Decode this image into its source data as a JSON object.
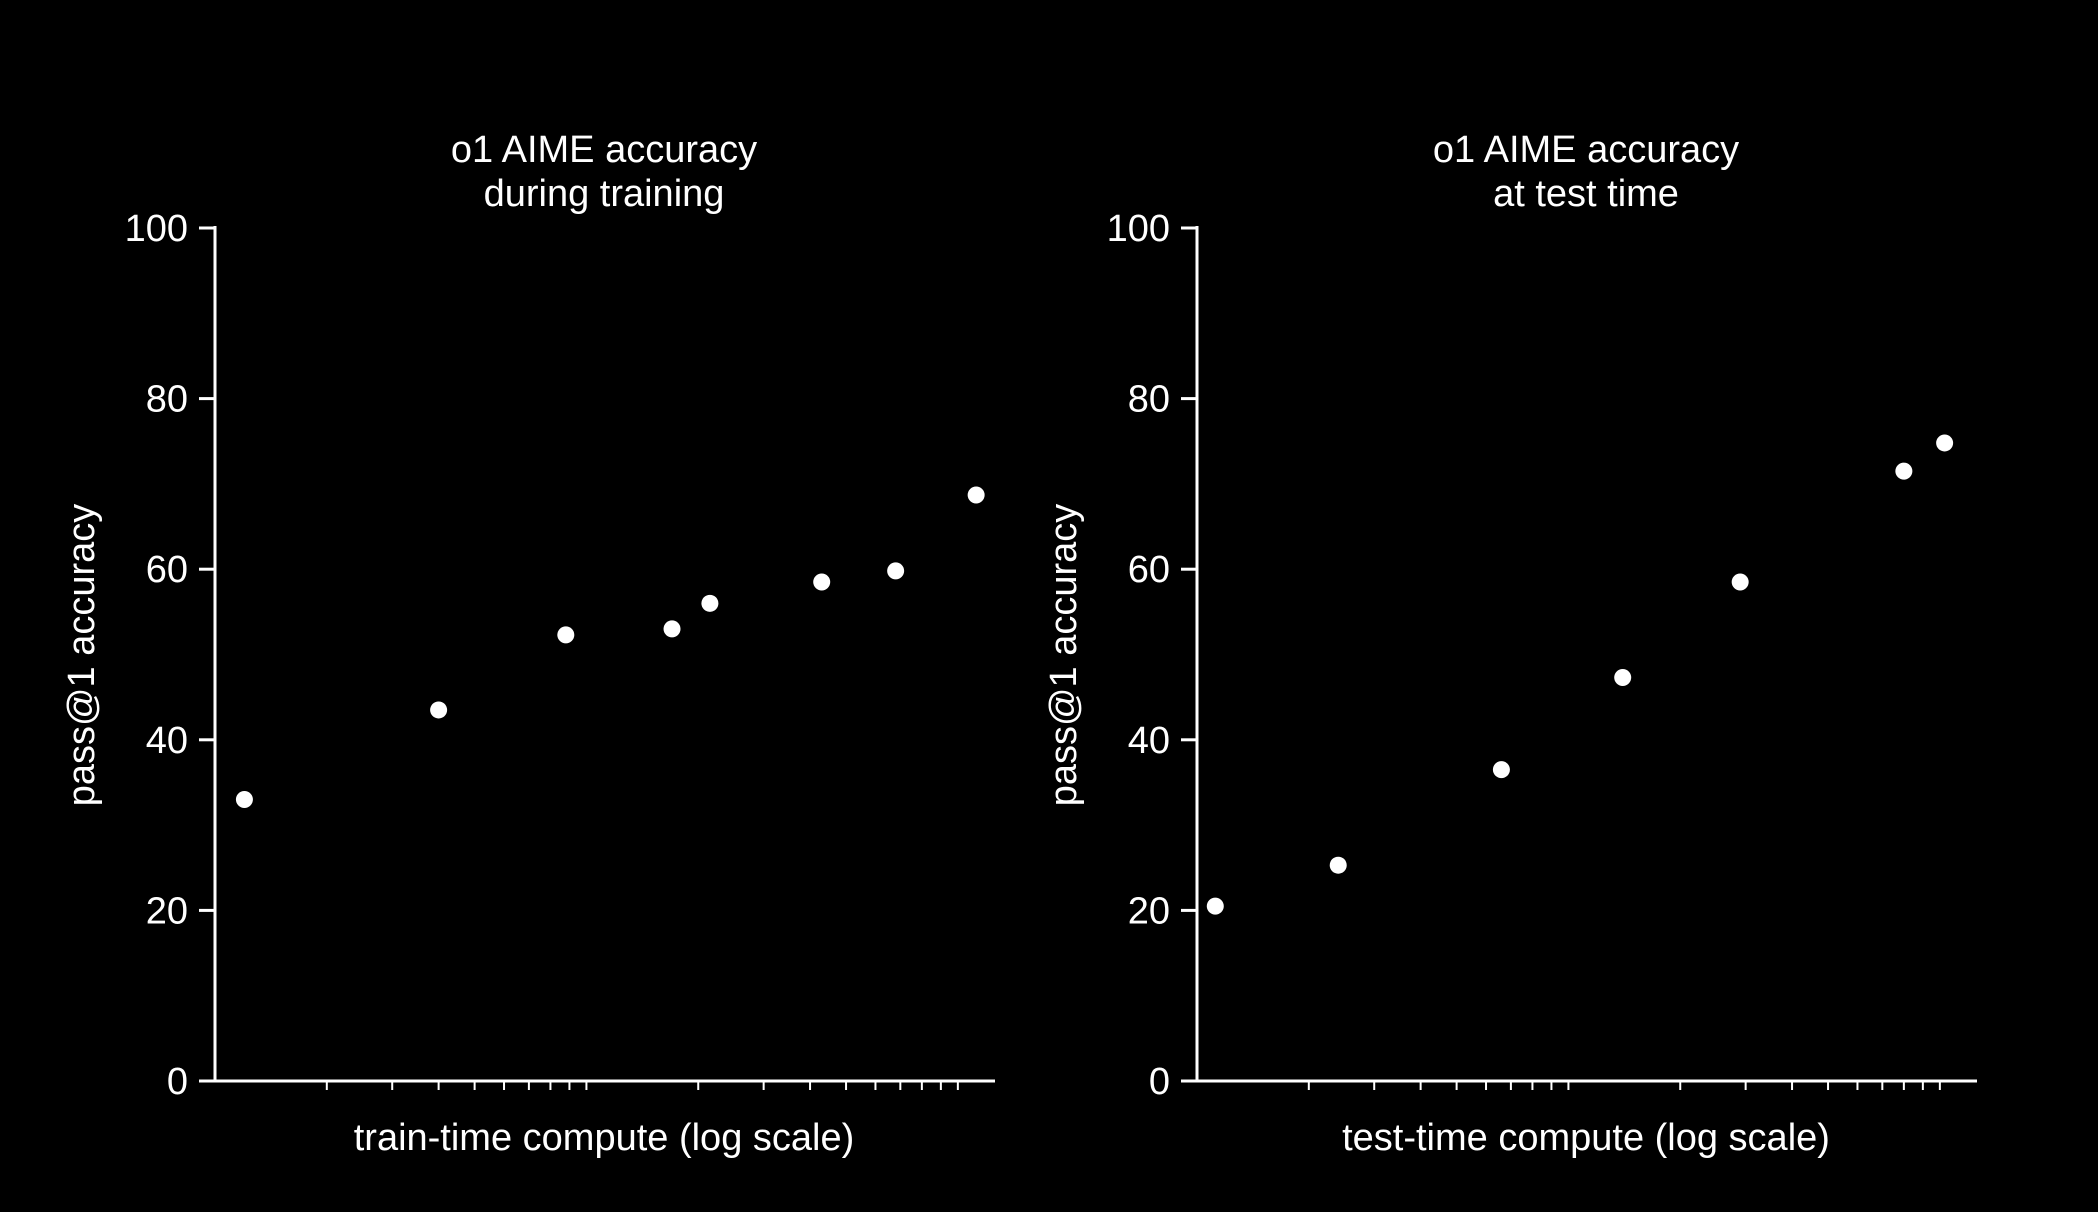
{
  "page": {
    "background": "#000000",
    "foreground": "#ffffff"
  },
  "chart_data": [
    {
      "type": "scatter",
      "title_lines": [
        "o1 AIME accuracy",
        "during training"
      ],
      "xlabel": "train-time compute (log scale)",
      "ylabel": "pass@1 accuracy",
      "x_scale": "log",
      "x_tick_labels_shown": false,
      "ylim": [
        0,
        100
      ],
      "yticks": [
        "0",
        "20",
        "40",
        "60",
        "80",
        "100"
      ],
      "grid": false,
      "legend": "none",
      "point_color": "#ffffff",
      "points": [
        {
          "x": 1.2,
          "y": 33
        },
        {
          "x": 4.0,
          "y": 43.5
        },
        {
          "x": 8.8,
          "y": 52.3
        },
        {
          "x": 17,
          "y": 53
        },
        {
          "x": 21.5,
          "y": 56
        },
        {
          "x": 43,
          "y": 58.5
        },
        {
          "x": 68,
          "y": 59.8
        },
        {
          "x": 112,
          "y": 68.7
        }
      ]
    },
    {
      "type": "scatter",
      "title_lines": [
        "o1 AIME accuracy",
        "at test time"
      ],
      "xlabel": "test-time compute (log scale)",
      "ylabel": "pass@1 accuracy",
      "x_scale": "log",
      "x_tick_labels_shown": false,
      "ylim": [
        0,
        100
      ],
      "yticks": [
        "0",
        "20",
        "40",
        "60",
        "80",
        "100"
      ],
      "grid": false,
      "legend": "none",
      "point_color": "#ffffff",
      "points": [
        {
          "x": 1.12,
          "y": 20.5
        },
        {
          "x": 2.4,
          "y": 25.3
        },
        {
          "x": 6.6,
          "y": 36.5
        },
        {
          "x": 14,
          "y": 47.3
        },
        {
          "x": 29,
          "y": 58.5
        },
        {
          "x": 80,
          "y": 71.5
        },
        {
          "x": 103,
          "y": 74.8
        }
      ]
    }
  ]
}
